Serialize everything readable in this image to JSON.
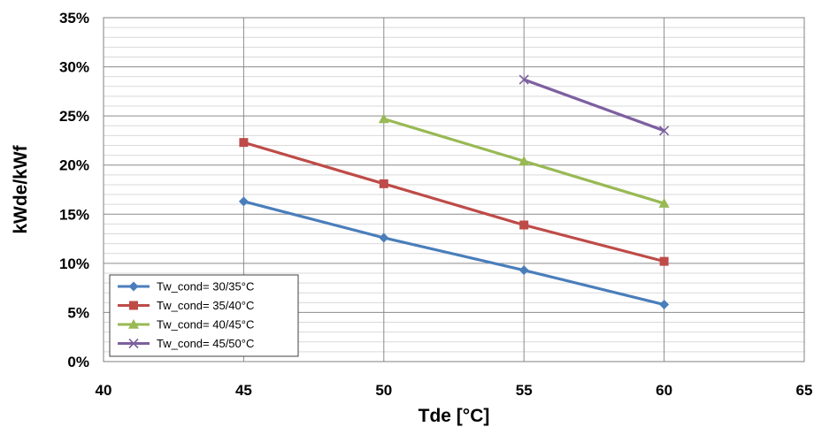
{
  "chart_data": {
    "type": "line",
    "title": "",
    "xlabel": "Tde [°C]",
    "ylabel": "kWde/kWf",
    "xlim": [
      40,
      65
    ],
    "ylim": [
      0,
      0.35
    ],
    "x_ticks": [
      40,
      45,
      50,
      55,
      60,
      65
    ],
    "x_tick_labels": [
      "40",
      "45",
      "50",
      "55",
      "60",
      "65"
    ],
    "y_ticks": [
      0,
      0.05,
      0.1,
      0.15,
      0.2,
      0.25,
      0.3,
      0.35
    ],
    "y_tick_labels": [
      "0%",
      "5%",
      "10%",
      "15%",
      "20%",
      "25%",
      "30%",
      "35%"
    ],
    "grid": "major and minor horizontal, major vertical",
    "legend_position": "bottom-left",
    "series": [
      {
        "name": "Tw_cond= 30/35°C",
        "color": "#4a7ebb",
        "marker": "diamond",
        "x": [
          45,
          50,
          55,
          60
        ],
        "values": [
          0.163,
          0.126,
          0.093,
          0.058
        ]
      },
      {
        "name": "Tw_cond= 35/40°C",
        "color": "#be4b48",
        "marker": "square",
        "x": [
          45,
          50,
          55,
          60
        ],
        "values": [
          0.223,
          0.181,
          0.139,
          0.102
        ]
      },
      {
        "name": "Tw_cond= 40/45°C",
        "color": "#98b954",
        "marker": "triangle",
        "x": [
          50,
          55,
          60
        ],
        "values": [
          0.247,
          0.204,
          0.161
        ]
      },
      {
        "name": "Tw_cond= 45/50°C",
        "color": "#7d60a0",
        "marker": "x",
        "x": [
          55,
          60
        ],
        "values": [
          0.287,
          0.235
        ]
      }
    ]
  }
}
